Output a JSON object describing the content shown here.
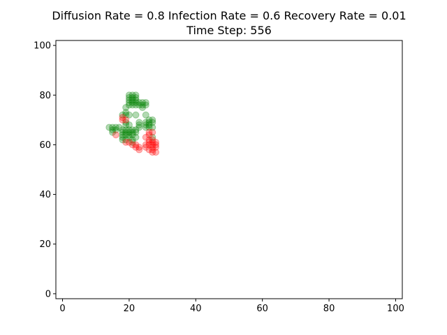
{
  "chart_data": {
    "type": "scatter",
    "title_line1": "Diffusion Rate = 0.8      Infection Rate = 0.6     Recovery Rate = 0.01",
    "title_line2": "Time Step: 556",
    "xlabel": "",
    "ylabel": "",
    "xlim": [
      -2,
      102
    ],
    "ylim": [
      -2,
      102
    ],
    "xticks": [
      0,
      20,
      40,
      60,
      80,
      100
    ],
    "yticks": [
      0,
      20,
      40,
      60,
      80,
      100
    ],
    "grid": false,
    "legend": "none",
    "series": [
      {
        "color": "#008000",
        "alpha": 0.3,
        "points": [
          [
            20,
            80
          ],
          [
            21,
            80
          ],
          [
            22,
            80
          ],
          [
            20,
            79
          ],
          [
            21,
            79
          ],
          [
            22,
            79
          ],
          [
            20,
            78
          ],
          [
            21,
            78
          ],
          [
            22,
            78
          ],
          [
            20,
            77
          ],
          [
            21,
            77
          ],
          [
            22,
            77
          ],
          [
            20,
            76
          ],
          [
            21,
            76
          ],
          [
            22,
            76
          ],
          [
            23,
            77
          ],
          [
            24,
            77
          ],
          [
            25,
            77
          ],
          [
            23,
            76
          ],
          [
            24,
            76
          ],
          [
            25,
            76
          ],
          [
            24,
            75
          ],
          [
            19,
            75
          ],
          [
            19,
            73
          ],
          [
            18,
            72
          ],
          [
            19,
            72
          ],
          [
            20,
            72
          ],
          [
            22,
            72
          ],
          [
            25,
            72
          ],
          [
            14,
            67
          ],
          [
            15,
            67
          ],
          [
            16,
            67
          ],
          [
            17,
            67
          ],
          [
            15,
            66
          ],
          [
            16,
            66
          ],
          [
            15,
            65
          ],
          [
            18,
            66
          ],
          [
            19,
            66
          ],
          [
            20,
            66
          ],
          [
            21,
            66
          ],
          [
            22,
            66
          ],
          [
            18,
            65
          ],
          [
            19,
            65
          ],
          [
            20,
            65
          ],
          [
            21,
            65
          ],
          [
            22,
            65
          ],
          [
            18,
            64
          ],
          [
            19,
            64
          ],
          [
            20,
            64
          ],
          [
            21,
            64
          ],
          [
            18,
            63
          ],
          [
            20,
            63
          ],
          [
            22,
            63
          ],
          [
            18,
            62
          ],
          [
            19,
            62
          ],
          [
            21,
            62
          ],
          [
            19,
            68
          ],
          [
            20,
            68
          ],
          [
            19,
            69
          ],
          [
            23,
            67
          ],
          [
            23,
            68
          ],
          [
            23,
            69
          ],
          [
            25,
            69
          ],
          [
            26,
            69
          ],
          [
            27,
            69
          ],
          [
            25,
            68
          ],
          [
            26,
            68
          ],
          [
            25,
            67
          ],
          [
            26,
            67
          ],
          [
            27,
            67
          ],
          [
            26,
            70
          ],
          [
            27,
            70
          ],
          [
            21,
            61
          ],
          [
            27,
            63
          ]
        ]
      },
      {
        "color": "#ff0000",
        "alpha": 0.3,
        "points": [
          [
            18,
            70
          ],
          [
            18,
            71
          ],
          [
            19,
            70
          ],
          [
            16,
            64
          ],
          [
            19,
            61
          ],
          [
            20,
            61
          ],
          [
            21,
            60
          ],
          [
            22,
            60
          ],
          [
            22,
            59
          ],
          [
            23,
            59
          ],
          [
            23,
            58
          ],
          [
            25,
            63
          ],
          [
            26,
            64
          ],
          [
            26,
            65
          ],
          [
            27,
            65
          ],
          [
            26,
            62
          ],
          [
            27,
            62
          ],
          [
            26,
            61
          ],
          [
            27,
            61
          ],
          [
            28,
            61
          ],
          [
            26,
            60
          ],
          [
            27,
            60
          ],
          [
            28,
            60
          ],
          [
            27,
            59
          ],
          [
            28,
            59
          ],
          [
            26,
            58
          ],
          [
            27,
            58
          ],
          [
            27,
            57
          ],
          [
            28,
            57
          ],
          [
            25,
            59
          ],
          [
            25,
            60
          ]
        ]
      }
    ]
  }
}
